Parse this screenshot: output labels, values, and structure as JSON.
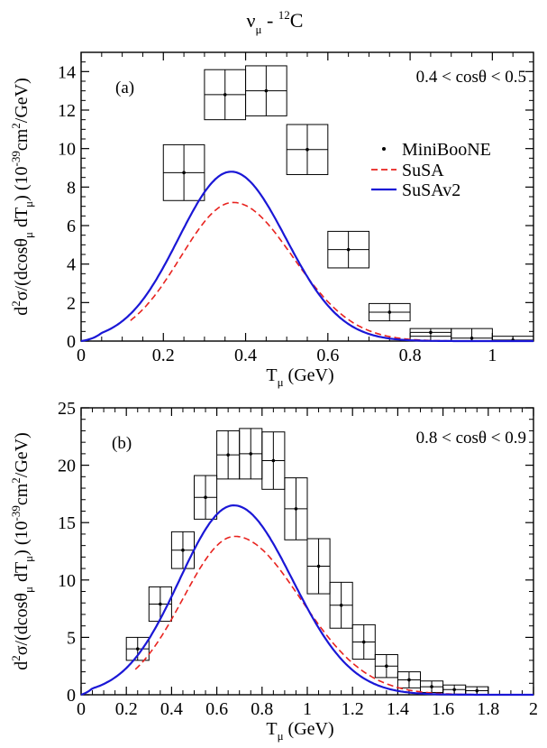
{
  "figure": {
    "title": "ν",
    "title_sub": "μ",
    "title_mid": " - ",
    "title_sup": "12",
    "title_end": "C"
  },
  "legend": {
    "items": [
      {
        "key": "data",
        "label": "MiniBooNE",
        "color": "#000000"
      },
      {
        "key": "susa",
        "label": "SuSA",
        "color": "#e8231f"
      },
      {
        "key": "susav2",
        "label": "SuSAv2",
        "color": "#1a17d6"
      }
    ]
  },
  "chart_data": [
    {
      "type": "line",
      "panel_label": "(a)",
      "annotation": "0.4 < cosθ < 0.5",
      "xlabel": {
        "main": "T",
        "sub": "μ",
        "rest": " (GeV)"
      },
      "ylabel": "d²σ/(dcosθμ dTμ) (10⁻³⁹cm²/GeV)",
      "xlim": [
        0,
        1.1
      ],
      "ylim": [
        0,
        15
      ],
      "xticks": [
        0,
        0.2,
        0.4,
        0.6,
        0.8,
        1
      ],
      "xtick_labels": [
        "0",
        "0.2",
        "0.4",
        "0.6",
        "0.8",
        "1"
      ],
      "yticks": [
        0,
        2,
        4,
        6,
        8,
        10,
        12,
        14
      ],
      "ytick_labels": [
        "0",
        "2",
        "4",
        "6",
        "8",
        "10",
        "12",
        "14"
      ],
      "data_points": [
        {
          "x": 0.25,
          "y": 8.75,
          "dx": 0.05,
          "dy": 1.45
        },
        {
          "x": 0.35,
          "y": 12.8,
          "dx": 0.05,
          "dy": 1.3
        },
        {
          "x": 0.45,
          "y": 13.0,
          "dx": 0.05,
          "dy": 1.3
        },
        {
          "x": 0.55,
          "y": 9.95,
          "dx": 0.05,
          "dy": 1.3
        },
        {
          "x": 0.65,
          "y": 4.75,
          "dx": 0.05,
          "dy": 0.95
        },
        {
          "x": 0.75,
          "y": 1.5,
          "dx": 0.05,
          "dy": 0.45
        },
        {
          "x": 0.85,
          "y": 0.45,
          "dx": 0.05,
          "dy": 0.2
        },
        {
          "x": 0.95,
          "y": 0.15,
          "dx": 0.05,
          "dy": 0.5
        },
        {
          "x": 1.05,
          "y": 0.05,
          "dx": 0.05,
          "dy": 0.2
        }
      ],
      "series": [
        {
          "name": "SuSA",
          "style": "dashed",
          "color": "#e8231f",
          "peak_x": 0.37,
          "peak_y": 7.2,
          "sigma_left": 0.128,
          "sigma_right": 0.145,
          "x_start": 0.12
        },
        {
          "name": "SuSAv2",
          "style": "solid",
          "color": "#1a17d6",
          "peak_x": 0.365,
          "peak_y": 8.8,
          "sigma_left": 0.128,
          "sigma_right": 0.133,
          "x_start": 0.0
        }
      ]
    },
    {
      "type": "line",
      "panel_label": "(b)",
      "annotation": "0.8 < cosθ < 0.9",
      "xlabel": {
        "main": "T",
        "sub": "μ",
        "rest": " (GeV)"
      },
      "ylabel": "d²σ/(dcosθμ dTμ) (10⁻³⁹cm²/GeV)",
      "xlim": [
        0,
        2
      ],
      "ylim": [
        0,
        25
      ],
      "xticks": [
        0,
        0.2,
        0.4,
        0.6,
        0.8,
        1,
        1.2,
        1.4,
        1.6,
        1.8,
        2
      ],
      "xtick_labels": [
        "0",
        "0.2",
        "0.4",
        "0.6",
        "0.8",
        "1",
        "1.2",
        "1.4",
        "1.6",
        "1.8",
        "2"
      ],
      "yticks": [
        0,
        5,
        10,
        15,
        20,
        25
      ],
      "ytick_labels": [
        "0",
        "5",
        "10",
        "15",
        "20",
        "25"
      ],
      "data_points": [
        {
          "x": 0.25,
          "y": 4.0,
          "dx": 0.05,
          "dy": 1.0
        },
        {
          "x": 0.35,
          "y": 7.9,
          "dx": 0.05,
          "dy": 1.5
        },
        {
          "x": 0.45,
          "y": 12.6,
          "dx": 0.05,
          "dy": 1.6
        },
        {
          "x": 0.55,
          "y": 17.2,
          "dx": 0.05,
          "dy": 1.9
        },
        {
          "x": 0.65,
          "y": 20.9,
          "dx": 0.05,
          "dy": 2.1
        },
        {
          "x": 0.75,
          "y": 21.0,
          "dx": 0.05,
          "dy": 2.2
        },
        {
          "x": 0.85,
          "y": 20.4,
          "dx": 0.05,
          "dy": 2.5
        },
        {
          "x": 0.95,
          "y": 16.2,
          "dx": 0.05,
          "dy": 2.7
        },
        {
          "x": 1.05,
          "y": 11.2,
          "dx": 0.05,
          "dy": 2.4
        },
        {
          "x": 1.15,
          "y": 7.8,
          "dx": 0.05,
          "dy": 2.0
        },
        {
          "x": 1.25,
          "y": 4.6,
          "dx": 0.05,
          "dy": 1.5
        },
        {
          "x": 1.35,
          "y": 2.5,
          "dx": 0.05,
          "dy": 1.0
        },
        {
          "x": 1.45,
          "y": 1.3,
          "dx": 0.05,
          "dy": 0.7
        },
        {
          "x": 1.55,
          "y": 0.7,
          "dx": 0.05,
          "dy": 0.5
        },
        {
          "x": 1.65,
          "y": 0.45,
          "dx": 0.05,
          "dy": 0.4
        },
        {
          "x": 1.75,
          "y": 0.35,
          "dx": 0.05,
          "dy": 0.35
        }
      ],
      "series": [
        {
          "name": "SuSA",
          "style": "dashed",
          "color": "#e8231f",
          "peak_x": 0.68,
          "peak_y": 13.8,
          "sigma_left": 0.23,
          "sigma_right": 0.29,
          "x_start": 0.24
        },
        {
          "name": "SuSAv2",
          "style": "solid",
          "color": "#1a17d6",
          "peak_x": 0.675,
          "peak_y": 16.5,
          "sigma_left": 0.24,
          "sigma_right": 0.26,
          "x_start": 0.0
        }
      ]
    }
  ]
}
